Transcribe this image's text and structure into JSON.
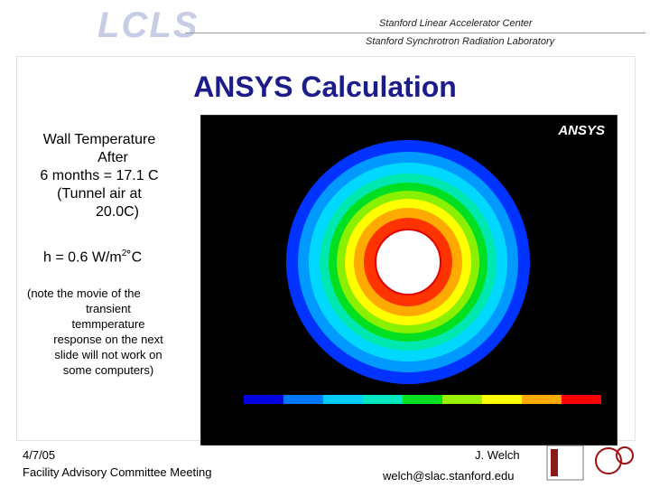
{
  "header": {
    "logo": "LCLS",
    "line1": "Stanford Linear Accelerator Center",
    "line2": "Stanford Synchrotron Radiation Laboratory"
  },
  "title": "ANSYS Calculation",
  "summary": {
    "lines": [
      "Wall Temperature",
      "After",
      "6 months = 17.1 C",
      "(Tunnel air at",
      "20.0C)"
    ],
    "coefficient": {
      "text": "h = 0.6 W/m",
      "superscript": "2",
      "unit": "˚C"
    }
  },
  "note": [
    "(note the movie of the",
    "transient",
    "temmperature",
    "response on the next",
    "slide will not work on",
    "some computers)"
  ],
  "figure": {
    "brand": "ANSYS"
  },
  "footer": {
    "date": "4/7/05",
    "meeting": "Facility Advisory Committee Meeting",
    "author": "J. Welch",
    "email": "welch@slac.stanford.edu"
  }
}
